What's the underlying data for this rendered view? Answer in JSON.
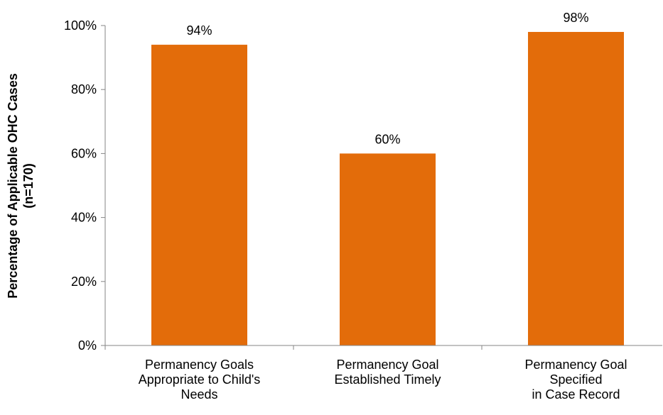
{
  "chart_data": {
    "type": "bar",
    "categories": [
      [
        "Permanency Goals",
        "Appropriate to Child's",
        "Needs"
      ],
      [
        "Permanency Goal",
        "Established Timely"
      ],
      [
        "Permanency Goal",
        "Specified",
        "in Case Record"
      ]
    ],
    "values": [
      94,
      60,
      98
    ],
    "value_labels": [
      "94%",
      "60%",
      "98%"
    ],
    "ylabel": [
      "Percentage of Applicable OHC Cases",
      "(n=170)"
    ],
    "ylim": [
      0,
      100
    ],
    "yticks": [
      0,
      20,
      40,
      60,
      80,
      100
    ],
    "ytick_labels": [
      "0%",
      "20%",
      "40%",
      "60%",
      "80%",
      "100%"
    ],
    "bar_color": "#E36C0A",
    "axis_color": "#868686",
    "grid": false,
    "legend": "none"
  }
}
